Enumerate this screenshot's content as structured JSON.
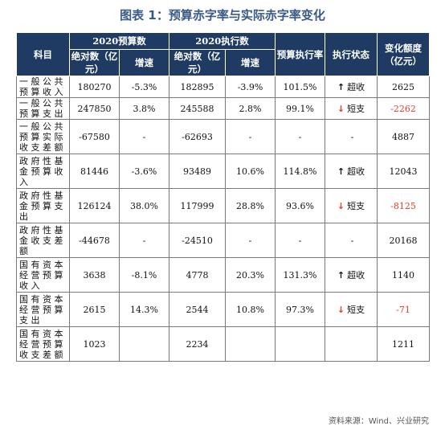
{
  "title": "图表 1：预算赤字率与实际赤字率变化",
  "source": "资料来源：Wind、兴业研究",
  "headers": {
    "subject": "科目",
    "budget_group": "2020预算数",
    "actual_group": "2020执行数",
    "absolute": "绝对数（亿元）",
    "growth": "增速",
    "ratio": "预算执行率",
    "status": "执行状态",
    "change": "变化额度（亿元）"
  },
  "rows": [
    {
      "subject": "一般公共预算收入",
      "budget_abs": "180270",
      "budget_growth": "-5.3%",
      "actual_abs": "182895",
      "actual_growth": "-3.9%",
      "ratio": "101.5%",
      "status_icon": "up-arrow-icon",
      "status": "超收",
      "change": "2625"
    },
    {
      "subject": "一般公共预算支出",
      "budget_abs": "247850",
      "budget_growth": "3.8%",
      "actual_abs": "245588",
      "actual_growth": "2.8%",
      "ratio": "99.1%",
      "status_icon": "down-arrow-icon",
      "status": "短支",
      "change": "-2262"
    },
    {
      "subject": "一般公共预算实际收支差额",
      "budget_abs": "-67580",
      "budget_growth": "-",
      "actual_abs": "-62693",
      "actual_growth": "-",
      "ratio": "-",
      "status_icon": "",
      "status": "-",
      "change": "4887"
    },
    {
      "subject": "政府性基金预算收入",
      "budget_abs": "81446",
      "budget_growth": "-3.6%",
      "actual_abs": "93489",
      "actual_growth": "10.6%",
      "ratio": "114.8%",
      "status_icon": "up-arrow-icon",
      "status": "超收",
      "change": "12043"
    },
    {
      "subject": "政府性基金预算支出",
      "budget_abs": "126124",
      "budget_growth": "38.0%",
      "actual_abs": "117999",
      "actual_growth": "28.8%",
      "ratio": "93.6%",
      "status_icon": "down-arrow-icon",
      "status": "短支",
      "change": "-8125"
    },
    {
      "subject": "政府性基金收支差额",
      "budget_abs": "-44678",
      "budget_growth": "-",
      "actual_abs": "-24510",
      "actual_growth": "-",
      "ratio": "-",
      "status_icon": "",
      "status": "-",
      "change": "20168"
    },
    {
      "subject": "国有资本经营预算收入",
      "budget_abs": "3638",
      "budget_growth": "-8.1%",
      "actual_abs": "4778",
      "actual_growth": "20.3%",
      "ratio": "131.3%",
      "status_icon": "up-arrow-icon",
      "status": "超收",
      "change": "1140"
    },
    {
      "subject": "国有资本经营预算支出",
      "budget_abs": "2615",
      "budget_growth": "14.3%",
      "actual_abs": "2544",
      "actual_growth": "10.8%",
      "ratio": "97.3%",
      "status_icon": "down-arrow-icon",
      "status": "短支",
      "change": "-71"
    },
    {
      "subject": "国有资本经营预算收支差额",
      "budget_abs": "1023",
      "budget_growth": "",
      "actual_abs": "2234",
      "actual_growth": "",
      "ratio": "",
      "status_icon": "",
      "status": "",
      "change": "1211"
    }
  ],
  "colors": {
    "header_bg": "#1f3b63",
    "title": "#3a5a86",
    "negative": "#e23b2e"
  }
}
